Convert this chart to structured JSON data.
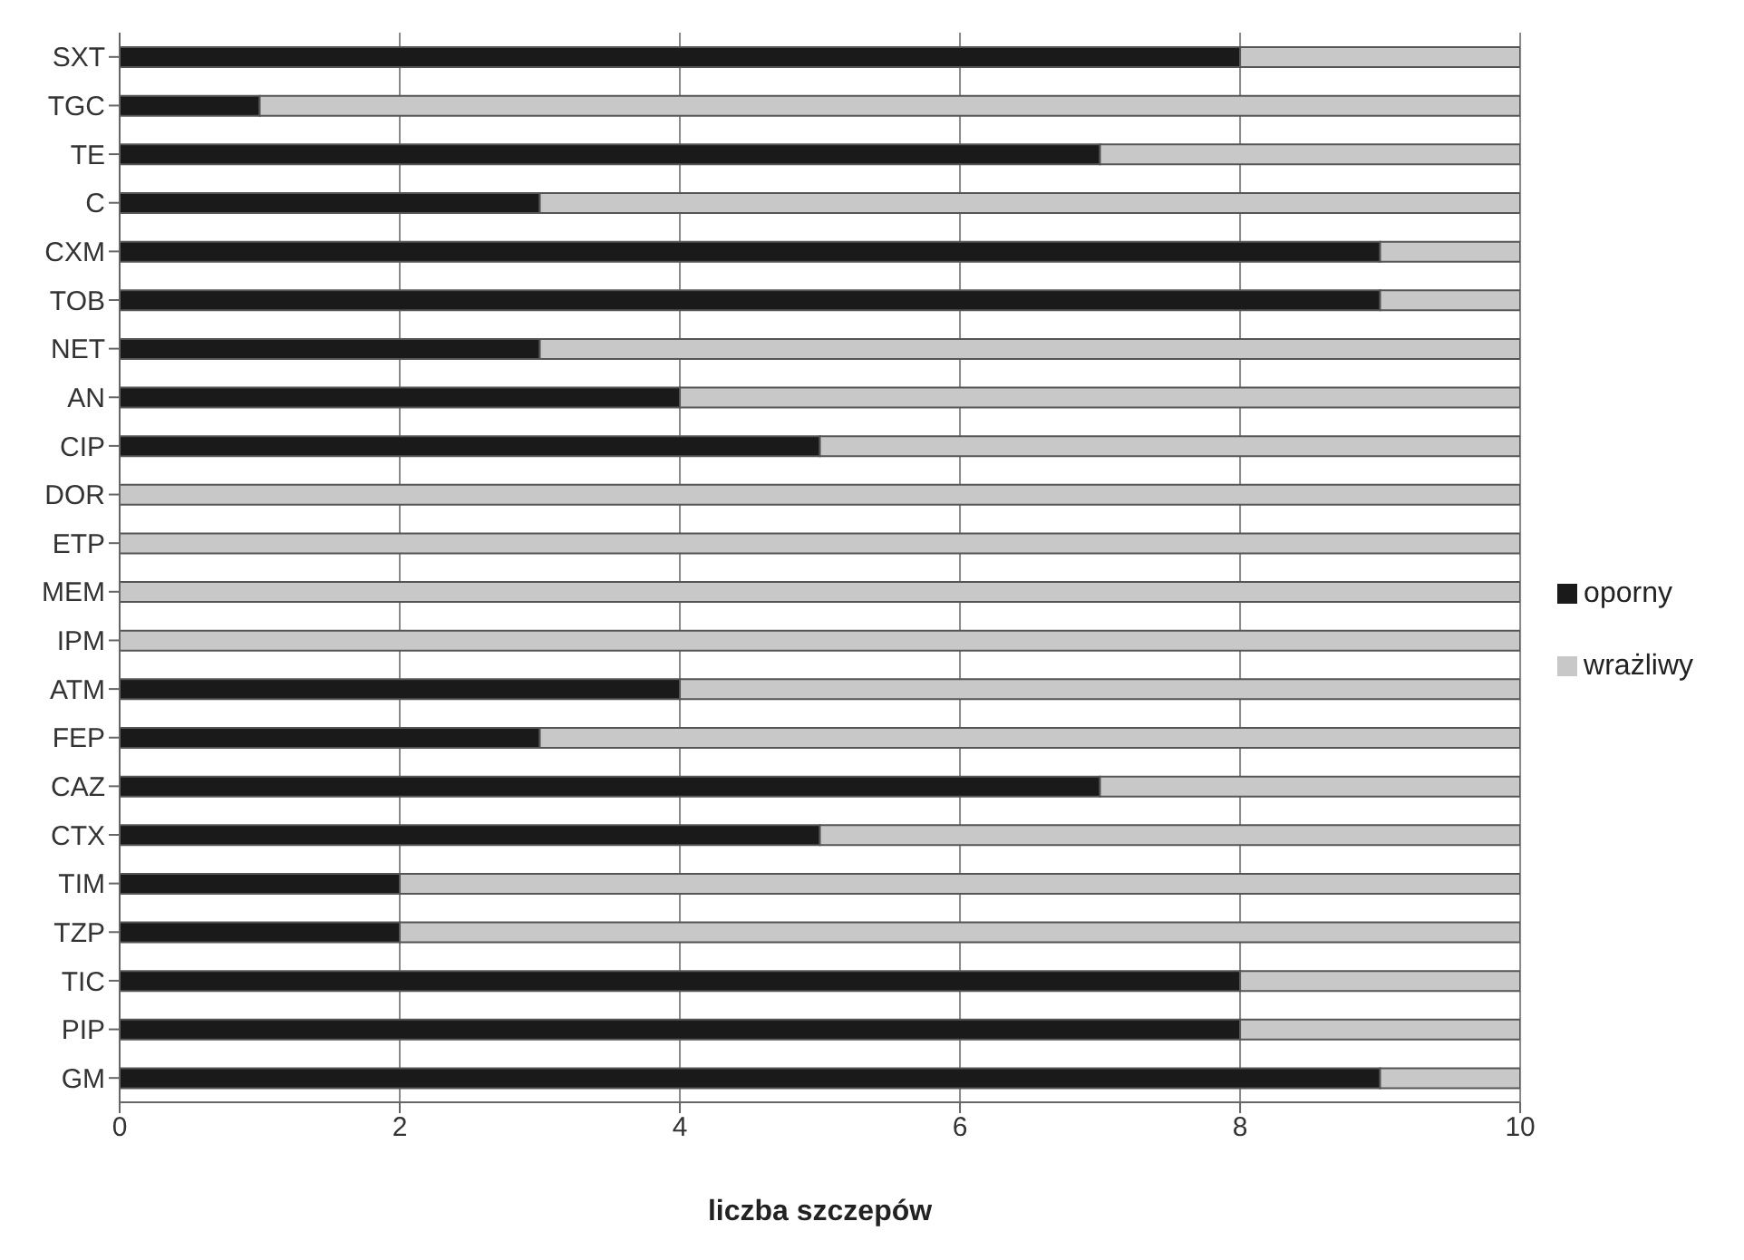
{
  "chart_data": {
    "type": "bar",
    "orientation": "horizontal",
    "stacked": true,
    "xlabel": "liczba szczepów",
    "categories": [
      "SXT",
      "TGC",
      "TE",
      "C",
      "CXM",
      "TOB",
      "NET",
      "AN",
      "CIP",
      "DOR",
      "ETP",
      "MEM",
      "IPM",
      "ATM",
      "FEP",
      "CAZ",
      "CTX",
      "TIM",
      "TZP",
      "TIC",
      "PIP",
      "GM"
    ],
    "series": [
      {
        "name": "oporny",
        "color": "#1a1a1a",
        "values": [
          8,
          1,
          7,
          3,
          9,
          9,
          3,
          4,
          5,
          0,
          0,
          0,
          0,
          4,
          3,
          7,
          5,
          2,
          2,
          8,
          8,
          9
        ]
      },
      {
        "name": "wrażliwy",
        "color": "#c8c8c8",
        "values": [
          2,
          9,
          3,
          7,
          1,
          1,
          7,
          6,
          5,
          10,
          10,
          10,
          10,
          6,
          7,
          3,
          5,
          8,
          8,
          2,
          2,
          1
        ]
      }
    ],
    "xlim": [
      0,
      10
    ],
    "xticks": [
      0,
      2,
      4,
      6,
      8,
      10
    ],
    "grid": "x",
    "legend": "right"
  }
}
